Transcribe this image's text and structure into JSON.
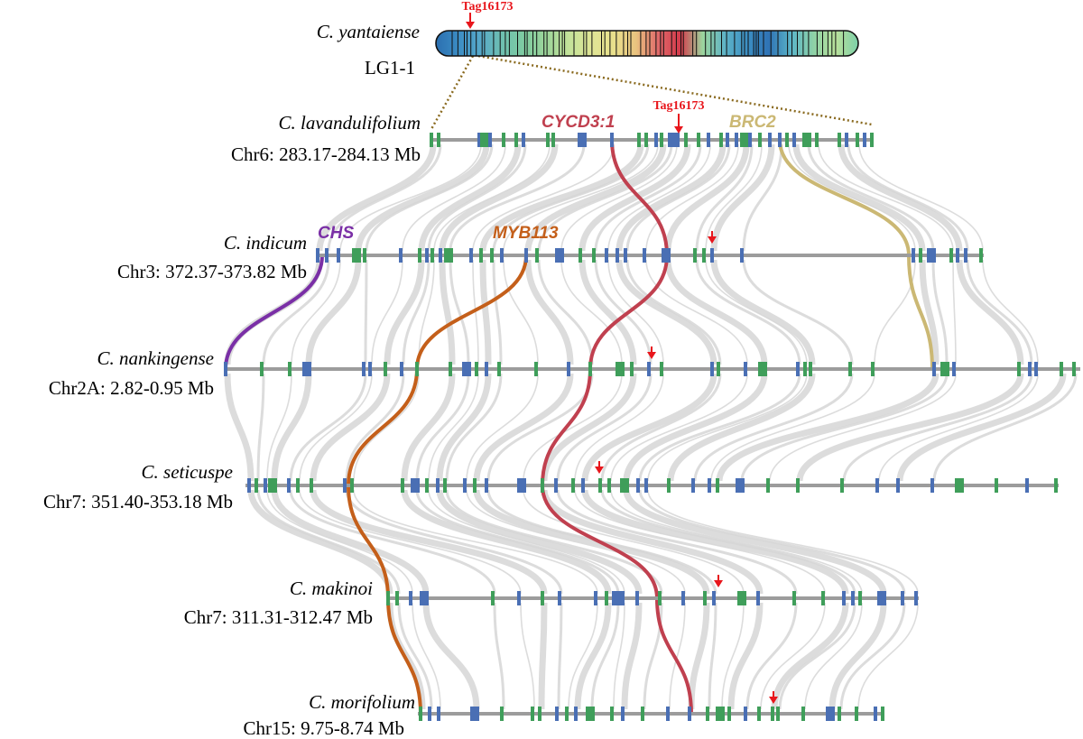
{
  "colors": {
    "axis": "#9c9c9c",
    "gene_blue": "#4a6fb4",
    "gene_green": "#3f9e5a",
    "link_gray": "#d6d6d6",
    "marker_red": "#e8161c",
    "zoom_line": "#8a6a1f"
  },
  "top": {
    "species": "C. yantaiense",
    "linkage_group": "LG1-1",
    "tag": "Tag16173",
    "band_colors": [
      "#2b6fb0",
      "#3b8cc4",
      "#57a9c9",
      "#6fc0b0",
      "#7fcca0",
      "#9ed59a",
      "#c4e39a",
      "#dfe596",
      "#e9e08c",
      "#e9c27f",
      "#e06a6a",
      "#d43a4b",
      "#9cd69e",
      "#5eb3c6",
      "#3c8fc4",
      "#2f73b5",
      "#5cb6c8",
      "#8fd2a6",
      "#b9e19b",
      "#7ccfa9"
    ]
  },
  "tracks": [
    {
      "species": "C. lavandulifolium",
      "region": "Chr6: 283.17-284.13 Mb"
    },
    {
      "species": "C. indicum",
      "region": "Chr3: 372.37-373.82 Mb"
    },
    {
      "species": "C. nankingense",
      "region": "Chr2A: 2.82-0.95 Mb"
    },
    {
      "species": "C. seticuspe",
      "region": "Chr7: 351.40-353.18 Mb"
    },
    {
      "species": "C. makinoi",
      "region": "Chr7: 311.31-312.47 Mb"
    },
    {
      "species": "C. morifolium",
      "region": "Chr15: 9.75-8.74 Mb"
    }
  ],
  "genes": [
    {
      "name": "CYCD3:1",
      "color": "#c0404f"
    },
    {
      "name": "BRC2",
      "color": "#cbb874"
    },
    {
      "name": "CHS",
      "color": "#7a2fa6"
    },
    {
      "name": "MYB113",
      "color": "#c45f1a"
    }
  ],
  "markers": [
    {
      "label": "Tag16173"
    }
  ]
}
